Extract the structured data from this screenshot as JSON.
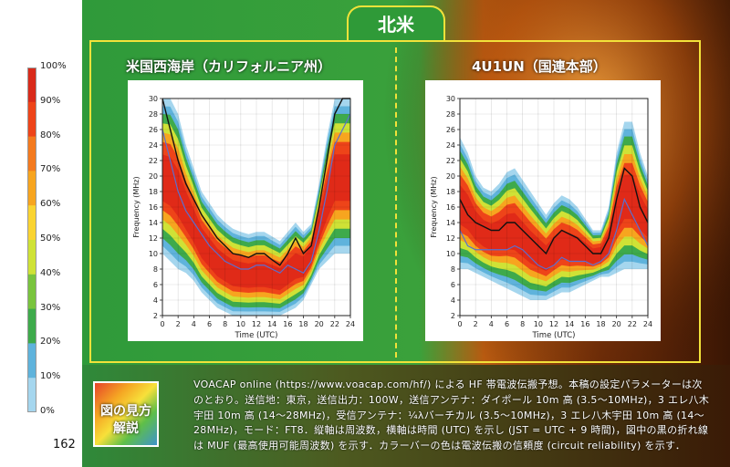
{
  "page": {
    "section_title": "北米",
    "page_number": "162",
    "how_to_read": "図の見方 解説",
    "description": "VOACAP online (https://www.voacap.com/hf/) による HF 帯電波伝搬予想。本稿の設定パラメーターは次のとおり。送信地：東京，送信出力：100W，送信アンテナ：ダイポール 10m 高 (3.5～10MHz)，3 エレ八木宇田 10m 高 (14～28MHz)，受信アンテナ：¼λバーチカル (3.5～10MHz)，3 エレ八木宇田 10m 高 (14～28MHz)，モード：FT8．縦軸は周波数，横軸は時間 (UTC) を示し (JST = UTC + 9 時間)，図中の黒の折れ線は MUF (最高使用可能周波数) を示す．カラーバーの色は電波伝搬の信頼度 (circuit reliability) を示す．"
  },
  "colorbar": {
    "labels": [
      "100%",
      "90%",
      "80%",
      "70%",
      "60%",
      "50%",
      "40%",
      "30%",
      "20%",
      "10%",
      "0%"
    ],
    "colors": [
      "#d92a1a",
      "#ee4419",
      "#f47a1e",
      "#f7a51f",
      "#fad431",
      "#cfe236",
      "#79c43d",
      "#3eaa4b",
      "#5fb3dc",
      "#a5d6ee",
      "#ffffff"
    ]
  },
  "chart_data": [
    {
      "type": "heatmap",
      "title": "米国西海岸（カリフォルニア州）",
      "xlabel": "Time (UTC)",
      "ylabel": "Frequency (MHz)",
      "xlim": [
        0,
        24
      ],
      "ylim": [
        2,
        30
      ],
      "xticks": [
        0,
        2,
        4,
        6,
        8,
        10,
        12,
        14,
        16,
        18,
        20,
        22,
        24
      ],
      "yticks": [
        2,
        4,
        6,
        8,
        10,
        12,
        14,
        16,
        18,
        20,
        22,
        24,
        26,
        28,
        30
      ],
      "x": [
        0,
        1,
        2,
        3,
        4,
        5,
        6,
        7,
        8,
        9,
        10,
        11,
        12,
        13,
        14,
        15,
        16,
        17,
        18,
        19,
        20,
        21,
        22,
        23,
        24
      ],
      "muf": [
        30,
        26,
        22,
        19,
        17,
        15,
        13.5,
        12,
        11,
        10,
        9.8,
        9.5,
        10,
        10,
        9.2,
        8.5,
        10,
        12,
        10,
        11,
        16,
        22,
        28,
        30,
        30
      ],
      "fot": [
        26,
        22,
        18,
        15.5,
        14,
        12.5,
        11,
        10,
        9,
        8.5,
        8,
        8,
        8.5,
        8.5,
        8,
        7.5,
        8.5,
        8,
        7.5,
        9,
        13,
        18,
        24,
        26,
        28
      ],
      "top_edge": [
        30,
        30,
        28,
        24,
        21,
        18,
        16.5,
        15,
        14,
        13.2,
        12.8,
        12.5,
        12.8,
        12.8,
        12.2,
        11.6,
        12.8,
        14,
        12.8,
        13.8,
        19,
        25,
        30,
        30,
        30
      ],
      "bottom_edge": [
        10,
        9,
        8,
        7.5,
        6.5,
        5,
        4,
        3,
        2.5,
        2,
        2,
        2,
        2,
        2,
        2,
        2,
        2.5,
        3,
        4,
        6,
        8,
        9,
        10,
        10,
        10
      ]
    },
    {
      "type": "heatmap",
      "title": "4U1UN（国連本部）",
      "xlabel": "Time (UTC)",
      "ylabel": "Frequency (MHz)",
      "xlim": [
        0,
        24
      ],
      "ylim": [
        2,
        30
      ],
      "xticks": [
        0,
        2,
        4,
        6,
        8,
        10,
        12,
        14,
        16,
        18,
        20,
        22,
        24
      ],
      "yticks": [
        2,
        4,
        6,
        8,
        10,
        12,
        14,
        16,
        18,
        20,
        22,
        24,
        26,
        28,
        30
      ],
      "x": [
        0,
        1,
        2,
        3,
        4,
        5,
        6,
        7,
        8,
        9,
        10,
        11,
        12,
        13,
        14,
        15,
        16,
        17,
        18,
        19,
        20,
        21,
        22,
        23,
        24
      ],
      "muf": [
        17,
        15,
        14,
        13.5,
        13,
        13,
        14,
        14,
        13,
        12,
        11,
        10,
        12,
        13,
        12.5,
        12,
        11,
        10,
        10,
        12,
        17,
        21,
        20,
        16,
        14
      ],
      "fot": [
        13,
        11,
        10.5,
        10.5,
        10.5,
        10.5,
        10.5,
        11,
        10.5,
        9.5,
        8.5,
        8,
        8.5,
        9.5,
        9,
        9,
        9,
        8.5,
        9,
        10,
        13,
        17,
        15,
        13,
        11
      ],
      "top_edge": [
        25,
        23,
        20,
        18.5,
        18,
        19,
        20.5,
        21,
        19.5,
        18,
        16.5,
        15,
        16.5,
        17.5,
        17,
        16,
        14.5,
        13,
        13,
        16,
        23,
        27,
        27,
        23,
        20
      ],
      "bottom_edge": [
        8,
        8,
        7.5,
        7,
        6.5,
        6,
        5.5,
        5,
        4.5,
        4,
        4,
        4,
        4.5,
        5,
        5,
        5.5,
        6,
        6.5,
        7,
        7,
        7.5,
        8,
        8,
        8,
        8
      ]
    }
  ]
}
